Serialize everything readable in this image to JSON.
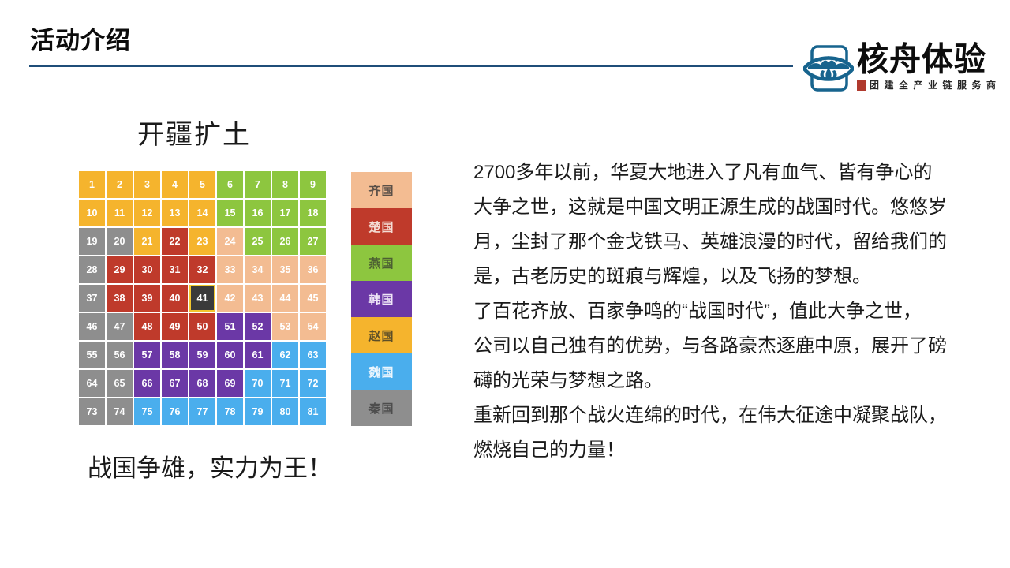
{
  "header": {
    "title": "活动介绍",
    "divider_color": "#1F4E79",
    "brand": "核舟体验",
    "tagline": "团建全产业链服务商",
    "logo_color": "#17648E",
    "seal_color": "#B03A2E"
  },
  "map": {
    "subtitle": "开疆扩土",
    "caption": "战国争雄，实力为王！",
    "rows": 9,
    "cols": 9,
    "selected": {
      "number": 41,
      "color": "#3A3A3A",
      "border_color": "#F2C72E"
    },
    "cells": [
      "zhao",
      "zhao",
      "zhao",
      "zhao",
      "zhao",
      "yan",
      "yan",
      "yan",
      "yan",
      "zhao",
      "zhao",
      "zhao",
      "zhao",
      "zhao",
      "yan",
      "yan",
      "yan",
      "yan",
      "qin",
      "qin",
      "zhao",
      "chu",
      "zhao",
      "qi",
      "yan",
      "yan",
      "yan",
      "qin",
      "chu",
      "chu",
      "chu",
      "chu",
      "qi",
      "qi",
      "qi",
      "qi",
      "qin",
      "chu",
      "chu",
      "chu",
      "sel",
      "qi",
      "qi",
      "qi",
      "qi",
      "qin",
      "qin",
      "chu",
      "chu",
      "chu",
      "han",
      "han",
      "qi",
      "qi",
      "qin",
      "qin",
      "han",
      "han",
      "han",
      "han",
      "han",
      "wei",
      "wei",
      "qin",
      "qin",
      "han",
      "han",
      "han",
      "han",
      "wei",
      "wei",
      "wei",
      "qin",
      "qin",
      "wei",
      "wei",
      "wei",
      "wei",
      "wei",
      "wei",
      "wei"
    ],
    "number_color": "#FFFFFF"
  },
  "states": {
    "qi": {
      "label": "齐国",
      "color": "#F3BC92",
      "label_color": "#5B5048"
    },
    "chu": {
      "label": "楚国",
      "color": "#BF3A2B",
      "label_color": "#F4DCD4"
    },
    "yan": {
      "label": "燕国",
      "color": "#8DC63F",
      "label_color": "#4C5F33"
    },
    "han": {
      "label": "韩国",
      "color": "#6B38A6",
      "label_color": "#EFE6F7"
    },
    "zhao": {
      "label": "赵国",
      "color": "#F5B42D",
      "label_color": "#5C4E28"
    },
    "wei": {
      "label": "魏国",
      "color": "#4AAEED",
      "label_color": "#EAF5FD"
    },
    "qin": {
      "label": "秦国",
      "color": "#8E8E8E",
      "label_color": "#4D4D4D"
    }
  },
  "legend_order": [
    "qi",
    "chu",
    "yan",
    "han",
    "zhao",
    "wei",
    "qin"
  ],
  "intro": {
    "paragraphs": [
      {
        "lines": [
          "2700多年以前，华夏大地进入了凡有血气、皆有争心的",
          "大争之世，这就是中国文明正源生成的战国时代。悠悠岁",
          "月，尘封了那个金戈铁马、英雄浪漫的时代，留给我们的",
          "是，古老历史的斑痕与辉煌，以及飞扬的梦想。"
        ]
      },
      {
        "lines": [
          "了百花齐放、百家争鸣的“战国时代”，值此大争之世，",
          "公司以自己独有的优势，与各路豪杰逐鹿中原，展开了磅",
          "礴的光荣与梦想之路。"
        ]
      },
      {
        "lines": [
          "重新回到那个战火连绵的时代，在伟大征途中凝聚战队，",
          "燃烧自己的力量！"
        ]
      }
    ]
  }
}
